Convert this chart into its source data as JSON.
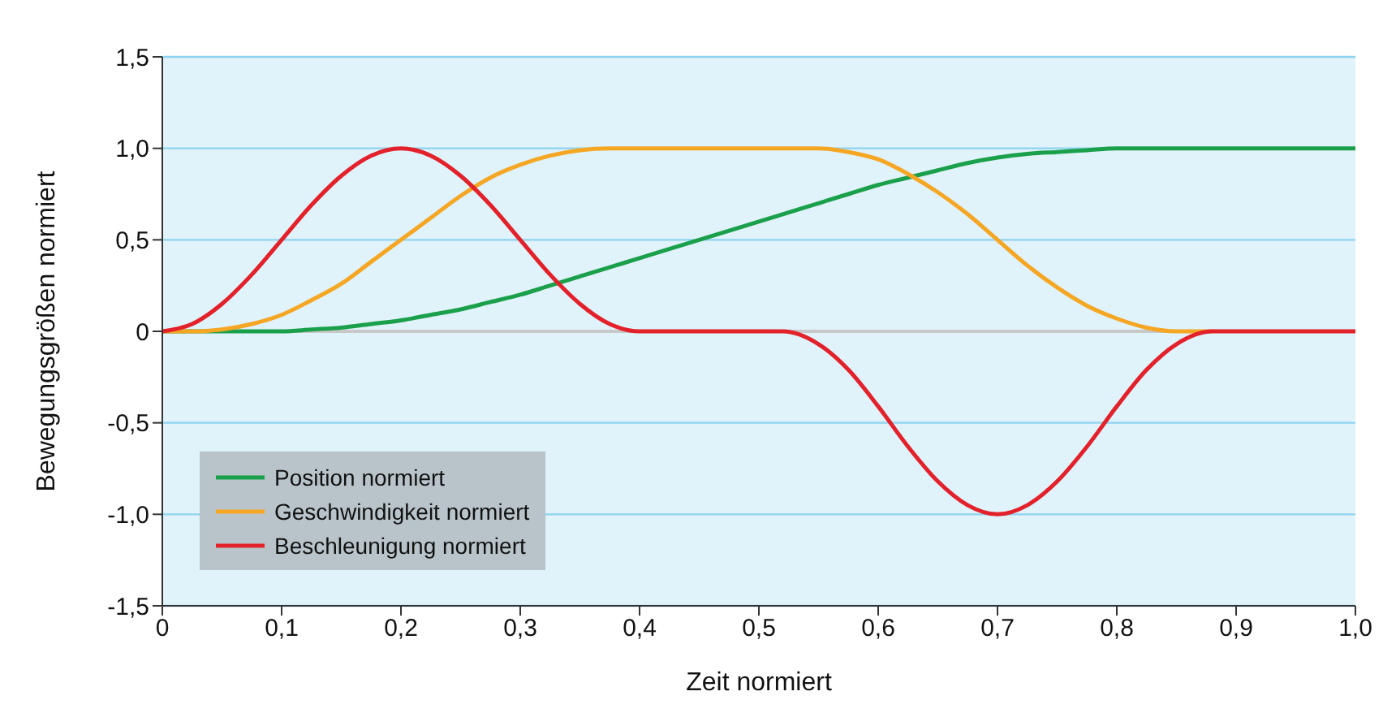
{
  "chart_data": {
    "type": "line",
    "xlabel": "Zeit normiert",
    "ylabel": "Bewegungsgrößen normiert",
    "x": [
      0,
      0.025,
      0.05,
      0.075,
      0.1,
      0.125,
      0.15,
      0.175,
      0.2,
      0.225,
      0.25,
      0.275,
      0.3,
      0.325,
      0.35,
      0.375,
      0.4,
      0.45,
      0.5,
      0.52,
      0.55,
      0.575,
      0.6,
      0.625,
      0.65,
      0.675,
      0.7,
      0.725,
      0.75,
      0.775,
      0.8,
      0.825,
      0.85,
      0.88,
      0.9,
      0.95,
      1.0
    ],
    "series": [
      {
        "name": "Position normiert",
        "color": "#1aa04a",
        "values": [
          0,
          0,
          0,
          0,
          0,
          0.01,
          0.02,
          0.04,
          0.06,
          0.09,
          0.12,
          0.16,
          0.2,
          0.25,
          0.3,
          0.35,
          0.4,
          0.5,
          0.6,
          0.64,
          0.7,
          0.75,
          0.8,
          0.84,
          0.88,
          0.92,
          0.95,
          0.97,
          0.98,
          0.99,
          1,
          1,
          1,
          1,
          1,
          1,
          1
        ]
      },
      {
        "name": "Geschwindigkeit normiert",
        "color": "#f5a623",
        "values": [
          0,
          0,
          0.01,
          0.04,
          0.09,
          0.17,
          0.26,
          0.38,
          0.5,
          0.62,
          0.74,
          0.84,
          0.91,
          0.96,
          0.99,
          1,
          1,
          1,
          1,
          1,
          1,
          0.98,
          0.94,
          0.86,
          0.76,
          0.64,
          0.5,
          0.36,
          0.24,
          0.14,
          0.07,
          0.02,
          0,
          0,
          null,
          null,
          null
        ]
      },
      {
        "name": "Beschleunigung normiert",
        "color": "#e3212b",
        "values": [
          0,
          0.04,
          0.15,
          0.31,
          0.5,
          0.69,
          0.85,
          0.96,
          1,
          0.96,
          0.85,
          0.69,
          0.5,
          0.31,
          0.15,
          0.04,
          0,
          0,
          0,
          0,
          -0.07,
          -0.21,
          -0.41,
          -0.63,
          -0.82,
          -0.95,
          -1,
          -0.95,
          -0.82,
          -0.63,
          -0.41,
          -0.21,
          -0.07,
          0,
          0,
          0,
          0
        ]
      }
    ],
    "xlim": [
      0,
      1
    ],
    "xticks": [
      {
        "value": 0,
        "label": "0"
      },
      {
        "value": 0.1,
        "label": "0,1"
      },
      {
        "value": 0.2,
        "label": "0,2"
      },
      {
        "value": 0.3,
        "label": "0,3"
      },
      {
        "value": 0.4,
        "label": "0,4"
      },
      {
        "value": 0.5,
        "label": "0,5"
      },
      {
        "value": 0.6,
        "label": "0,6"
      },
      {
        "value": 0.7,
        "label": "0,7"
      },
      {
        "value": 0.8,
        "label": "0,8"
      },
      {
        "value": 0.9,
        "label": "0,9"
      },
      {
        "value": 1,
        "label": "1,0"
      }
    ],
    "ylim": [
      -1.5,
      1.5
    ],
    "yticks": [
      {
        "value": -1.5,
        "label": "-1,5"
      },
      {
        "value": -1,
        "label": "-1,0"
      },
      {
        "value": -0.5,
        "label": "-0,5"
      },
      {
        "value": 0,
        "label": "0"
      },
      {
        "value": 0.5,
        "label": "0,5"
      },
      {
        "value": 1,
        "label": "1,0"
      },
      {
        "value": 1.5,
        "label": "1,5"
      }
    ],
    "ref_lines": [
      {
        "axis": "y",
        "value": 0,
        "color": "#c8c8c8"
      }
    ],
    "grid": "y",
    "legend": "bottom left",
    "marker": "none",
    "line_style": "solid"
  }
}
